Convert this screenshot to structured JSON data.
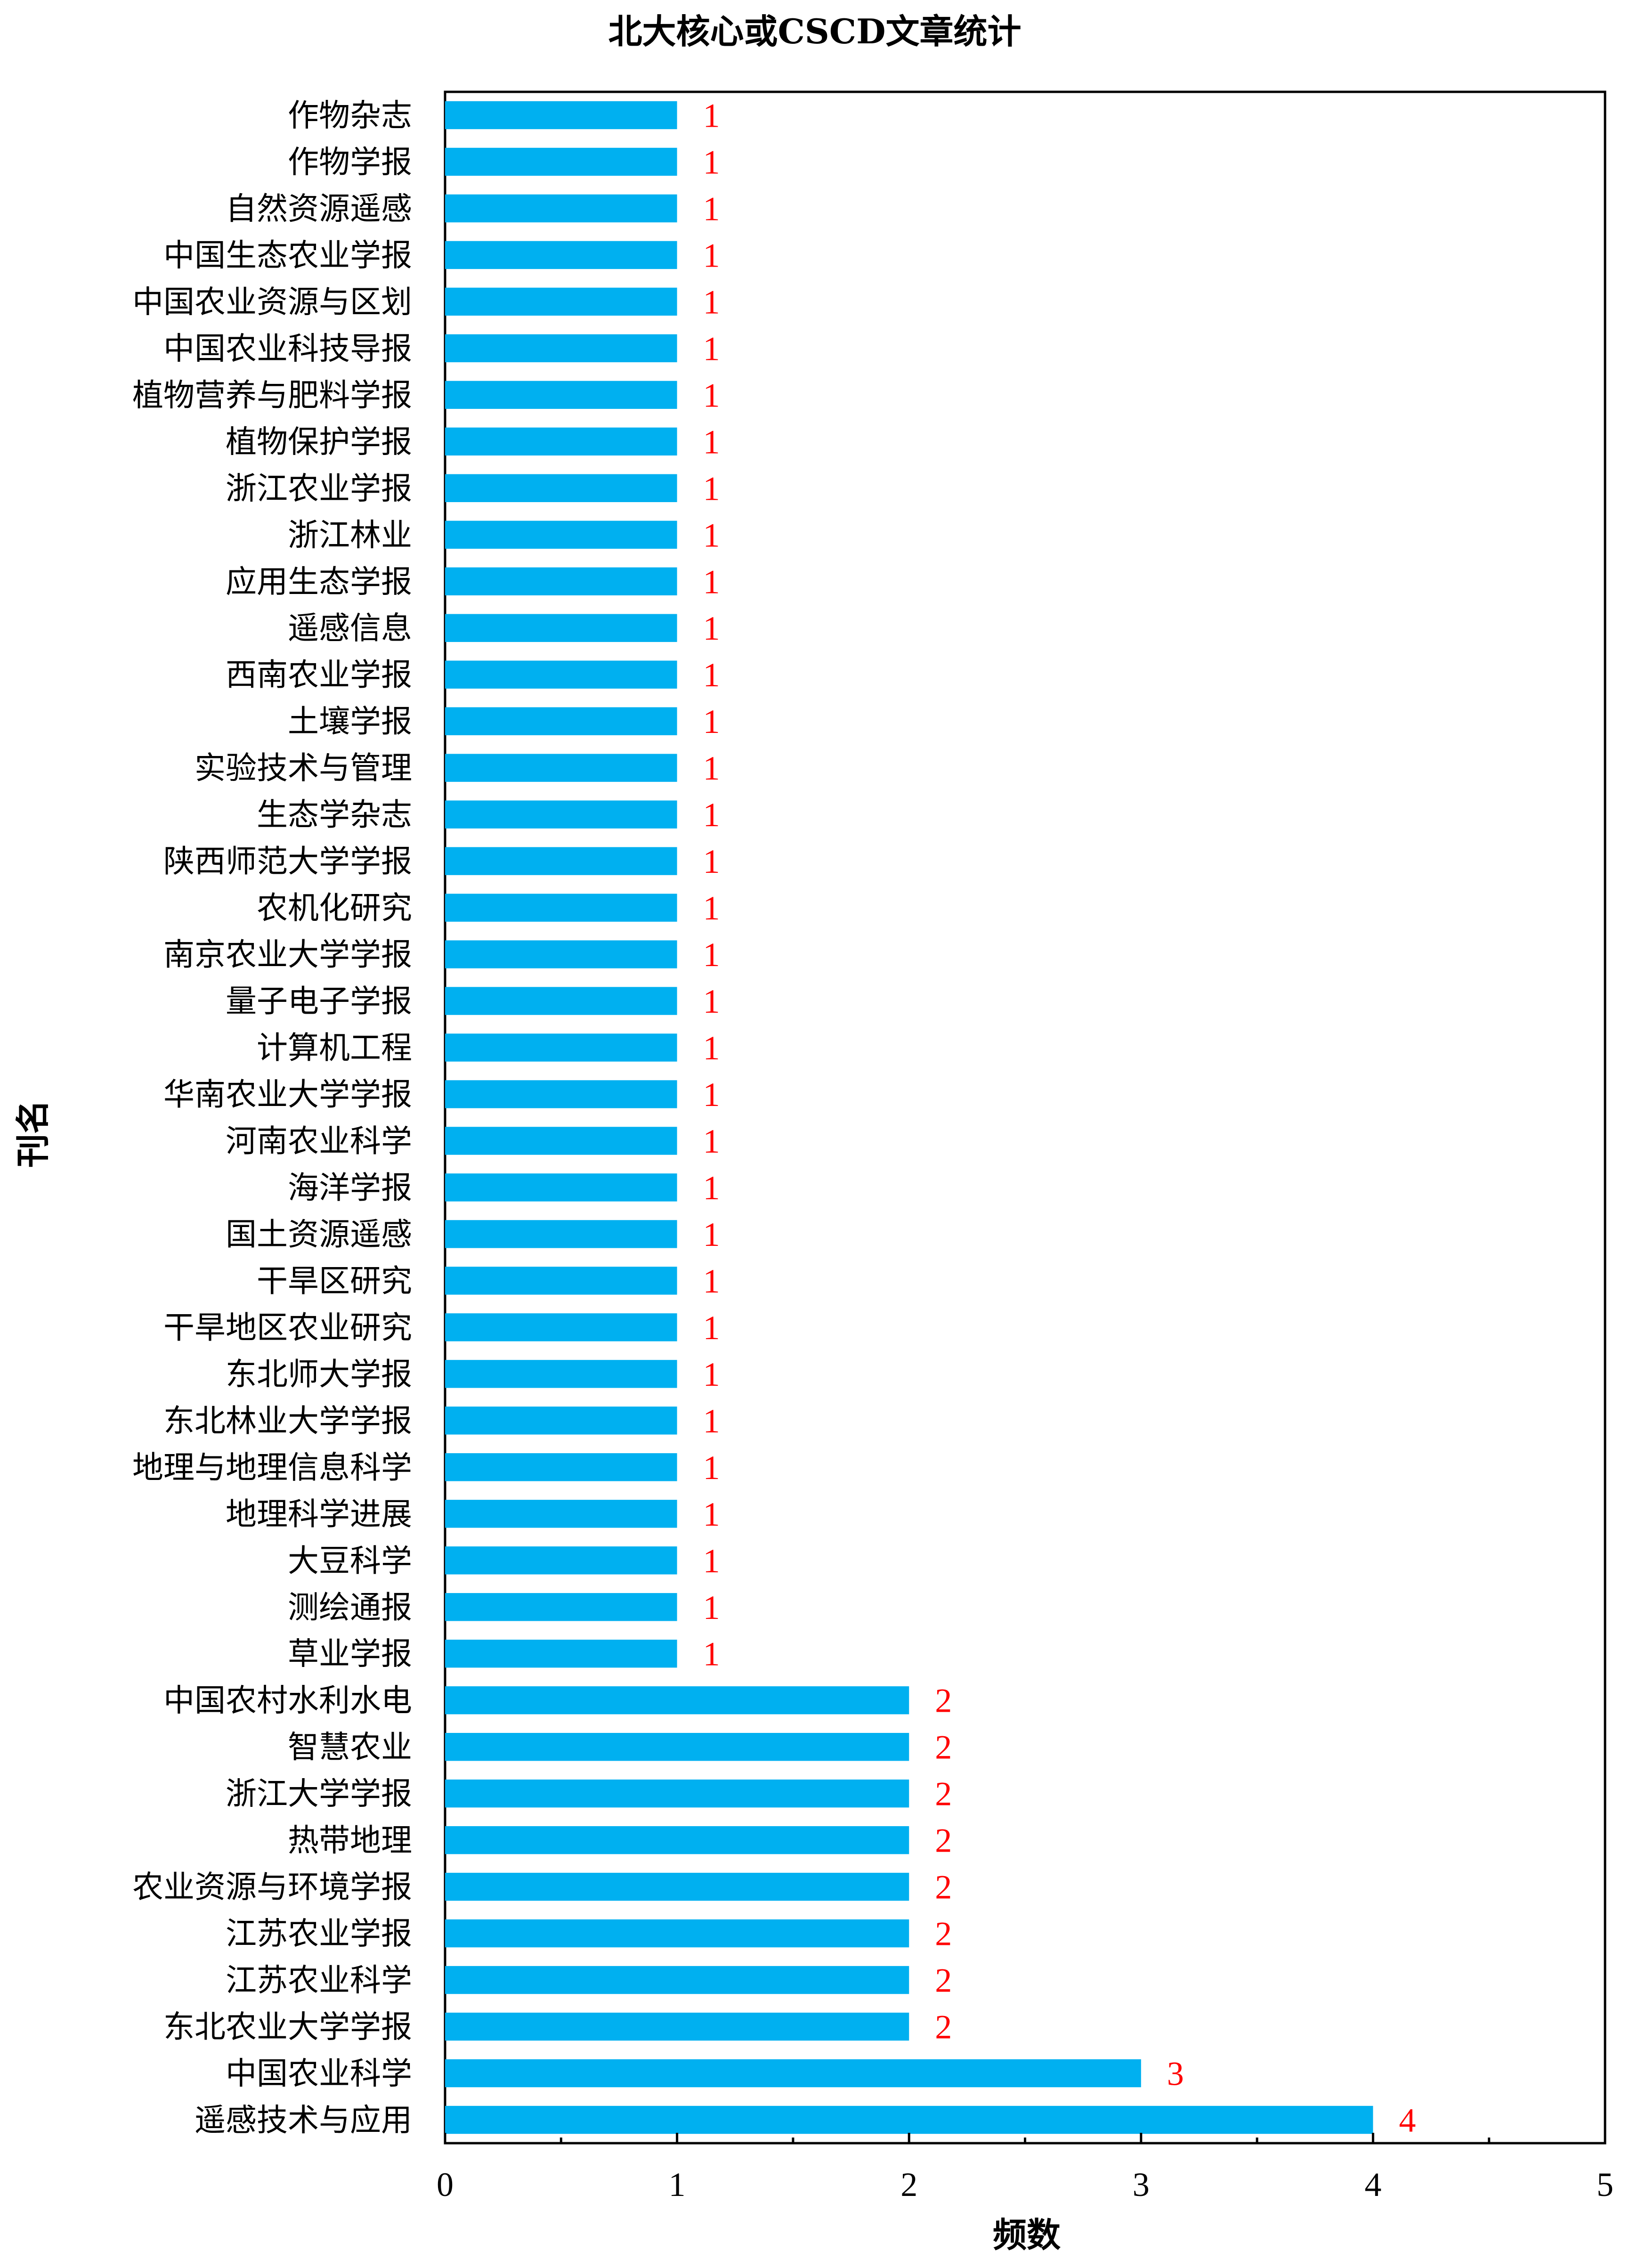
{
  "colors": {
    "bar": "#00B0F0",
    "data_label": "#FF0000",
    "axis": "#000000",
    "background": "#FFFFFF"
  },
  "chart_data": {
    "type": "bar",
    "orientation": "horizontal",
    "title": "北大核心或CSCD文章统计",
    "xlabel": "频数",
    "ylabel": "刊名",
    "xlim": [
      0,
      5
    ],
    "xticks": [
      "0",
      "1",
      "2",
      "3",
      "4",
      "5"
    ],
    "grid": false,
    "legend": "none",
    "categories": [
      "作物杂志",
      "作物学报",
      "自然资源遥感",
      "中国生态农业学报",
      "中国农业资源与区划",
      "中国农业科技导报",
      "植物营养与肥料学报",
      "植物保护学报",
      "浙江农业学报",
      "浙江林业",
      "应用生态学报",
      "遥感信息",
      "西南农业学报",
      "土壤学报",
      "实验技术与管理",
      "生态学杂志",
      "陕西师范大学学报",
      "农机化研究",
      "南京农业大学学报",
      "量子电子学报",
      "计算机工程",
      "华南农业大学学报",
      "河南农业科学",
      "海洋学报",
      "国土资源遥感",
      "干旱区研究",
      "干旱地区农业研究",
      "东北师大学报",
      "东北林业大学学报",
      "地理与地理信息科学",
      "地理科学进展",
      "大豆科学",
      "测绘通报",
      "草业学报",
      "中国农村水利水电",
      "智慧农业",
      "浙江大学学报",
      "热带地理",
      "农业资源与环境学报",
      "江苏农业学报",
      "江苏农业科学",
      "东北农业大学学报",
      "中国农业科学",
      "遥感技术与应用"
    ],
    "values": [
      1,
      1,
      1,
      1,
      1,
      1,
      1,
      1,
      1,
      1,
      1,
      1,
      1,
      1,
      1,
      1,
      1,
      1,
      1,
      1,
      1,
      1,
      1,
      1,
      1,
      1,
      1,
      1,
      1,
      1,
      1,
      1,
      1,
      1,
      2,
      2,
      2,
      2,
      2,
      2,
      2,
      2,
      3,
      4
    ],
    "data_labels": [
      "1",
      "1",
      "1",
      "1",
      "1",
      "1",
      "1",
      "1",
      "1",
      "1",
      "1",
      "1",
      "1",
      "1",
      "1",
      "1",
      "1",
      "1",
      "1",
      "1",
      "1",
      "1",
      "1",
      "1",
      "1",
      "1",
      "1",
      "1",
      "1",
      "1",
      "1",
      "1",
      "1",
      "1",
      "2",
      "2",
      "2",
      "2",
      "2",
      "2",
      "2",
      "2",
      "3",
      "4"
    ]
  }
}
